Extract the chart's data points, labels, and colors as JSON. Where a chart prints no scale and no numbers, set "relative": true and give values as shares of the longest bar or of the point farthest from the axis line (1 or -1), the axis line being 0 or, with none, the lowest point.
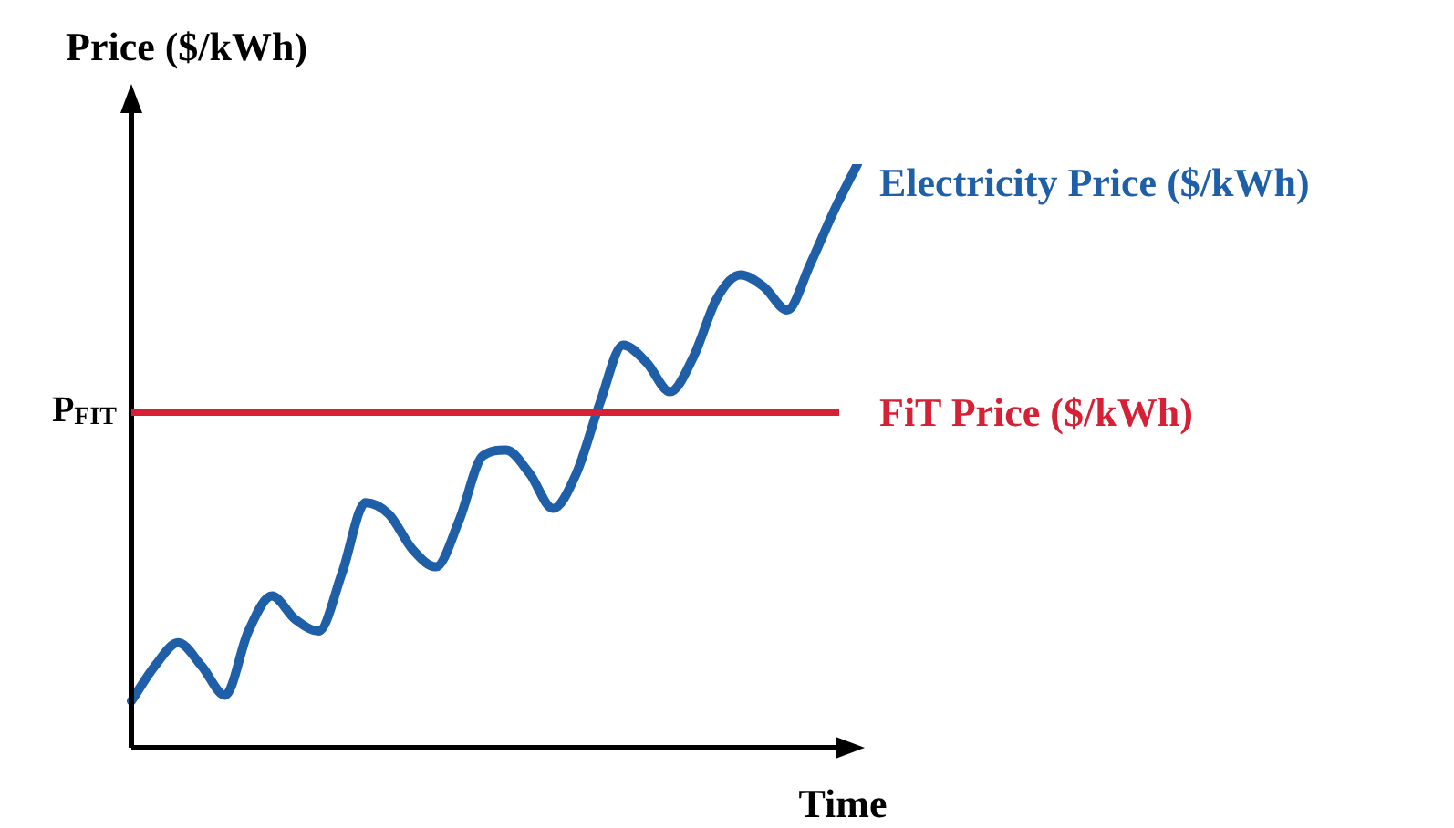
{
  "chart_data": {
    "type": "line",
    "relative": true,
    "xlabel": "Time",
    "ylabel": "Price ($/kWh)",
    "categories": [
      null,
      null,
      null,
      null,
      null,
      null,
      null,
      null,
      null,
      null,
      null,
      null,
      null,
      null,
      null,
      null,
      null,
      null,
      null,
      null,
      null,
      null,
      null,
      null,
      null,
      null,
      null,
      null,
      null,
      null,
      null,
      null
    ],
    "series": [
      {
        "name": "Electricity Price ($/kWh)",
        "color": "#1f5fa8",
        "values": [
          0.08,
          0.14,
          0.18,
          0.14,
          0.09,
          0.2,
          0.26,
          0.22,
          0.2,
          0.3,
          0.42,
          0.4,
          0.34,
          0.31,
          0.39,
          0.5,
          0.51,
          0.47,
          0.41,
          0.47,
          0.59,
          0.69,
          0.66,
          0.61,
          0.67,
          0.77,
          0.81,
          0.79,
          0.75,
          0.83,
          0.92,
          1
        ]
      }
    ],
    "ref_lines": [
      {
        "axis": "y",
        "value": 0.575,
        "label": "FiT Price ($/kWh)",
        "color": "#d62035"
      }
    ],
    "annotations": [
      "P$_{FIT}$"
    ],
    "legend": false,
    "marker": "none",
    "line_style": "solid"
  }
}
